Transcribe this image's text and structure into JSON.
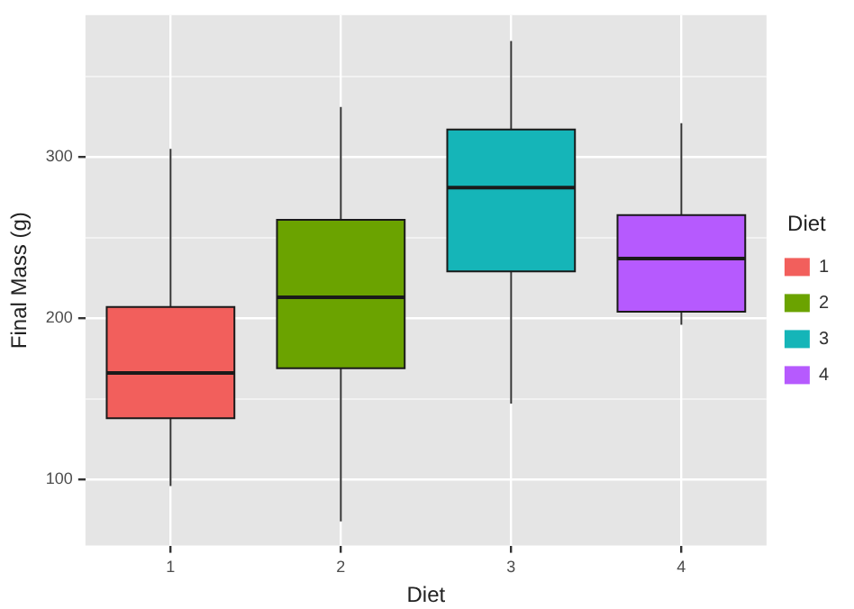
{
  "chart_data": {
    "type": "box",
    "xlabel": "Diet",
    "ylabel": "Final Mass (g)",
    "legend_title": "Diet",
    "legend": "right",
    "grid": true,
    "categories": [
      "1",
      "2",
      "3",
      "4"
    ],
    "series": [
      {
        "name": "1",
        "color": "#f25f5c",
        "boxes": [
          {
            "low": 96,
            "q1": 138,
            "median": 166,
            "q3": 207,
            "high": 305
          },
          null,
          null,
          null
        ]
      },
      {
        "name": "2",
        "color": "#6ba300",
        "boxes": [
          null,
          {
            "low": 74,
            "q1": 169,
            "median": 213,
            "q3": 261,
            "high": 331
          },
          null,
          null
        ]
      },
      {
        "name": "3",
        "color": "#15b5b8",
        "boxes": [
          null,
          null,
          {
            "low": 147,
            "q1": 229,
            "median": 281,
            "q3": 317,
            "high": 372
          },
          null
        ]
      },
      {
        "name": "4",
        "color": "#b65afe",
        "boxes": [
          null,
          null,
          null,
          {
            "low": 196,
            "q1": 204,
            "median": 237,
            "q3": 264,
            "high": 321
          }
        ]
      }
    ],
    "ylim": [
      59,
      388
    ],
    "yticks": [
      100,
      {
        "value": 150,
        "label": null
      },
      200,
      {
        "value": 250,
        "label": null
      },
      300,
      {
        "value": 350,
        "label": null
      }
    ]
  }
}
